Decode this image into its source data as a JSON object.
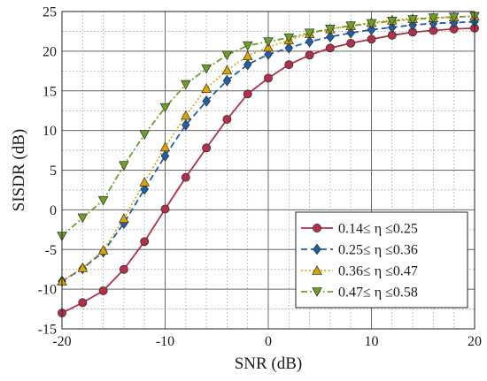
{
  "chart_data": {
    "type": "line",
    "xlabel": "SNR (dB)",
    "ylabel": "SISDR (dB)",
    "xlim": [
      -20,
      20
    ],
    "ylim": [
      -15,
      25
    ],
    "major_xticks": [
      -20,
      -10,
      0,
      10,
      20
    ],
    "major_yticks": [
      -15,
      -10,
      -5,
      0,
      5,
      10,
      15,
      20,
      25
    ],
    "x_tick_labels": [
      "-20",
      "-10",
      "0",
      "10",
      "20"
    ],
    "y_tick_labels": [
      "-15",
      "-10",
      "-5",
      "0",
      "5",
      "10",
      "15",
      "20",
      "25"
    ],
    "minor_x_step": 2,
    "minor_y_step": 2.5,
    "grid": "major solid, minor dotted",
    "legend_position": "bottom-right",
    "x": [
      -20,
      -18,
      -16,
      -14,
      -12,
      -10,
      -8,
      -6,
      -4,
      -2,
      0,
      2,
      4,
      6,
      8,
      10,
      12,
      14,
      16,
      18,
      20
    ],
    "series": [
      {
        "name": "0.14≤ η ≤0.25",
        "color": "#b0304a",
        "marker": "circle",
        "line_style": "solid",
        "values": [
          -13.0,
          -11.7,
          -10.2,
          -7.5,
          -4.0,
          0.1,
          4.1,
          7.8,
          11.4,
          14.6,
          16.6,
          18.3,
          19.5,
          20.4,
          21.0,
          21.5,
          22.0,
          22.4,
          22.6,
          22.8,
          22.9
        ]
      },
      {
        "name": "0.25≤ η ≤0.36",
        "color": "#1f5fa8",
        "marker": "diamond",
        "line_style": "dashed",
        "values": [
          -9.0,
          -7.4,
          -5.3,
          -1.7,
          2.6,
          6.8,
          10.7,
          13.7,
          16.3,
          18.3,
          19.6,
          20.4,
          21.2,
          21.8,
          22.3,
          22.7,
          23.0,
          23.3,
          23.5,
          23.6,
          23.7
        ]
      },
      {
        "name": "0.36≤ η ≤0.47",
        "color": "#d9a500",
        "marker": "triangle-up",
        "line_style": "dotted",
        "values": [
          -9.0,
          -7.3,
          -5.1,
          -1.1,
          3.5,
          7.9,
          11.9,
          15.3,
          17.6,
          19.4,
          20.5,
          21.4,
          22.2,
          22.8,
          23.2,
          23.6,
          23.9,
          24.1,
          24.2,
          24.3,
          24.4
        ]
      },
      {
        "name": "0.47≤ η ≤0.58",
        "color": "#6f9e25",
        "marker": "triangle-down",
        "line_style": "dashdot",
        "values": [
          -3.3,
          -1.0,
          1.2,
          5.6,
          9.5,
          12.9,
          15.8,
          17.8,
          19.5,
          20.7,
          21.2,
          21.7,
          22.3,
          22.8,
          23.2,
          23.5,
          23.8,
          24.0,
          24.2,
          24.3,
          24.4
        ]
      }
    ]
  }
}
